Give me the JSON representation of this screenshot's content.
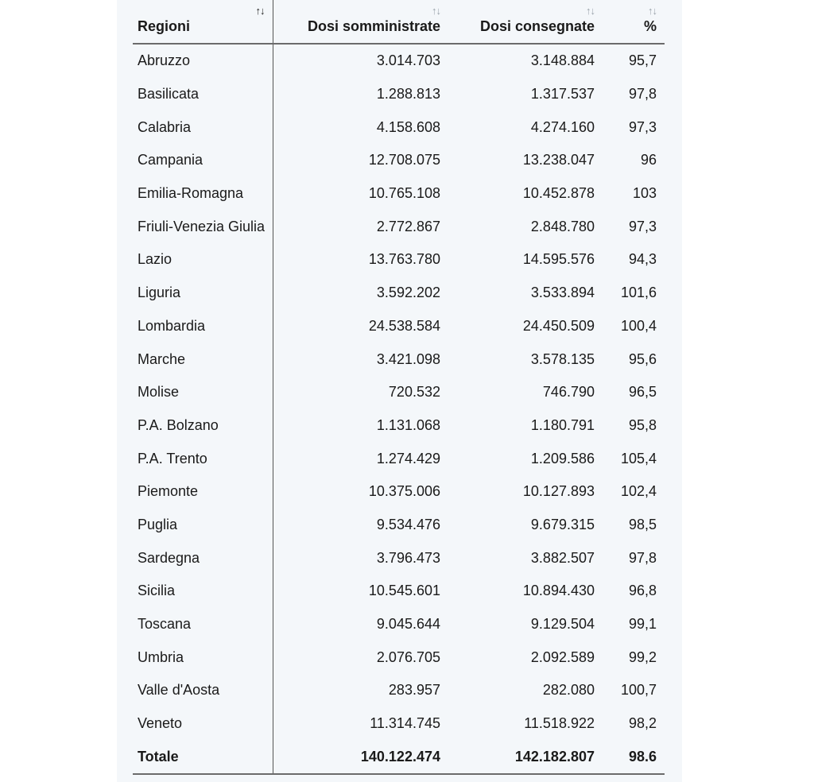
{
  "header": {
    "region": "Regioni",
    "administered": "Dosi somministrate",
    "delivered": "Dosi consegnate",
    "percent": "%",
    "sort_glyph": "↑↓"
  },
  "rows": [
    {
      "region": "Abruzzo",
      "administered": "3.014.703",
      "delivered": "3.148.884",
      "percent": "95,7"
    },
    {
      "region": "Basilicata",
      "administered": "1.288.813",
      "delivered": "1.317.537",
      "percent": "97,8"
    },
    {
      "region": "Calabria",
      "administered": "4.158.608",
      "delivered": "4.274.160",
      "percent": "97,3"
    },
    {
      "region": "Campania",
      "administered": "12.708.075",
      "delivered": "13.238.047",
      "percent": "96"
    },
    {
      "region": "Emilia-Romagna",
      "administered": "10.765.108",
      "delivered": "10.452.878",
      "percent": "103"
    },
    {
      "region": "Friuli-Venezia Giulia",
      "administered": "2.772.867",
      "delivered": "2.848.780",
      "percent": "97,3"
    },
    {
      "region": "Lazio",
      "administered": "13.763.780",
      "delivered": "14.595.576",
      "percent": "94,3"
    },
    {
      "region": "Liguria",
      "administered": "3.592.202",
      "delivered": "3.533.894",
      "percent": "101,6"
    },
    {
      "region": "Lombardia",
      "administered": "24.538.584",
      "delivered": "24.450.509",
      "percent": "100,4"
    },
    {
      "region": "Marche",
      "administered": "3.421.098",
      "delivered": "3.578.135",
      "percent": "95,6"
    },
    {
      "region": "Molise",
      "administered": "720.532",
      "delivered": "746.790",
      "percent": "96,5"
    },
    {
      "region": "P.A. Bolzano",
      "administered": "1.131.068",
      "delivered": "1.180.791",
      "percent": "95,8"
    },
    {
      "region": "P.A. Trento",
      "administered": "1.274.429",
      "delivered": "1.209.586",
      "percent": "105,4"
    },
    {
      "region": "Piemonte",
      "administered": "10.375.006",
      "delivered": "10.127.893",
      "percent": "102,4"
    },
    {
      "region": "Puglia",
      "administered": "9.534.476",
      "delivered": "9.679.315",
      "percent": "98,5"
    },
    {
      "region": "Sardegna",
      "administered": "3.796.473",
      "delivered": "3.882.507",
      "percent": "97,8"
    },
    {
      "region": "Sicilia",
      "administered": "10.545.601",
      "delivered": "10.894.430",
      "percent": "96,8"
    },
    {
      "region": "Toscana",
      "administered": "9.045.644",
      "delivered": "9.129.504",
      "percent": "99,1"
    },
    {
      "region": "Umbria",
      "administered": "2.076.705",
      "delivered": "2.092.589",
      "percent": "99,2"
    },
    {
      "region": "Valle d'Aosta",
      "administered": "283.957",
      "delivered": "282.080",
      "percent": "100,7"
    },
    {
      "region": "Veneto",
      "administered": "11.314.745",
      "delivered": "11.518.922",
      "percent": "98,2"
    }
  ],
  "total": {
    "region": "Totale",
    "administered": "140.122.474",
    "delivered": "142.182.807",
    "percent": "98.6"
  }
}
